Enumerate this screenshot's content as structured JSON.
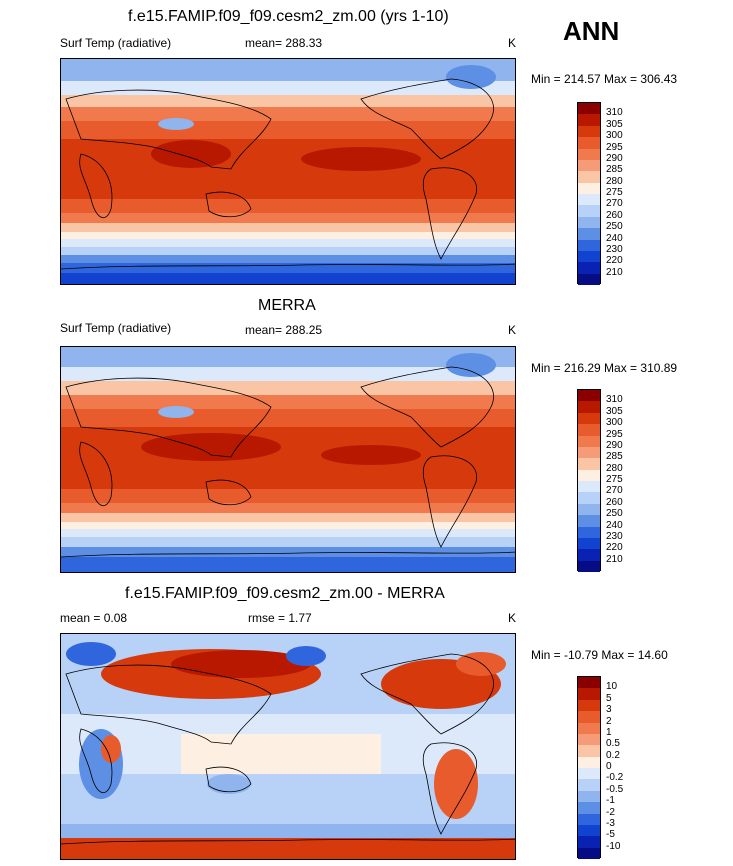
{
  "season": "ANN",
  "panels": [
    {
      "title": "f.e15.FAMIP.f09_f09.cesm2_zm.00 (yrs 1-10)",
      "left_label": "Surf Temp (radiative)",
      "center_label": "mean= 288.33",
      "units": "K",
      "minmax": "Min = 214.57 Max = 306.43",
      "colorbar_labels": [
        "310",
        "305",
        "300",
        "295",
        "290",
        "285",
        "280",
        "275",
        "270",
        "260",
        "250",
        "240",
        "230",
        "220",
        "210"
      ],
      "colorbar_colors": [
        "#8a0000",
        "#b81800",
        "#d63a0c",
        "#e85b2c",
        "#f07a4e",
        "#f59b77",
        "#f9c5a5",
        "#fdf0e2",
        "#dce9fb",
        "#b8d2f7",
        "#8fb4ee",
        "#5d8fe5",
        "#2f66de",
        "#1143d0",
        "#0a22b4",
        "#060c84"
      ]
    },
    {
      "title": "MERRA",
      "left_label": "Surf Temp (radiative)",
      "center_label": "mean= 288.25",
      "units": "K",
      "minmax": "Min = 216.29 Max = 310.89",
      "colorbar_labels": [
        "310",
        "305",
        "300",
        "295",
        "290",
        "285",
        "280",
        "275",
        "270",
        "260",
        "250",
        "240",
        "230",
        "220",
        "210"
      ],
      "colorbar_colors": [
        "#8a0000",
        "#b81800",
        "#d63a0c",
        "#e85b2c",
        "#f07a4e",
        "#f59b77",
        "#f9c5a5",
        "#fdf0e2",
        "#dce9fb",
        "#b8d2f7",
        "#8fb4ee",
        "#5d8fe5",
        "#2f66de",
        "#1143d0",
        "#0a22b4",
        "#060c84"
      ]
    },
    {
      "title": "f.e15.FAMIP.f09_f09.cesm2_zm.00 - MERRA",
      "left_label": "mean =   0.08",
      "center_label": "rmse =   1.77",
      "units": "K",
      "minmax": "Min = -10.79 Max =  14.60",
      "colorbar_labels": [
        "10",
        "5",
        "3",
        "2",
        "1",
        "0.5",
        "0.2",
        "0",
        "-0.2",
        "-0.5",
        "-1",
        "-2",
        "-3",
        "-5",
        "-10"
      ],
      "colorbar_colors": [
        "#8a0000",
        "#b81800",
        "#d63a0c",
        "#e85b2c",
        "#f07a4e",
        "#f59b77",
        "#f9c5a5",
        "#fdf0e2",
        "#dce9fb",
        "#b8d2f7",
        "#8fb4ee",
        "#5d8fe5",
        "#2f66de",
        "#1143d0",
        "#0a22b4",
        "#060c84"
      ]
    }
  ]
}
